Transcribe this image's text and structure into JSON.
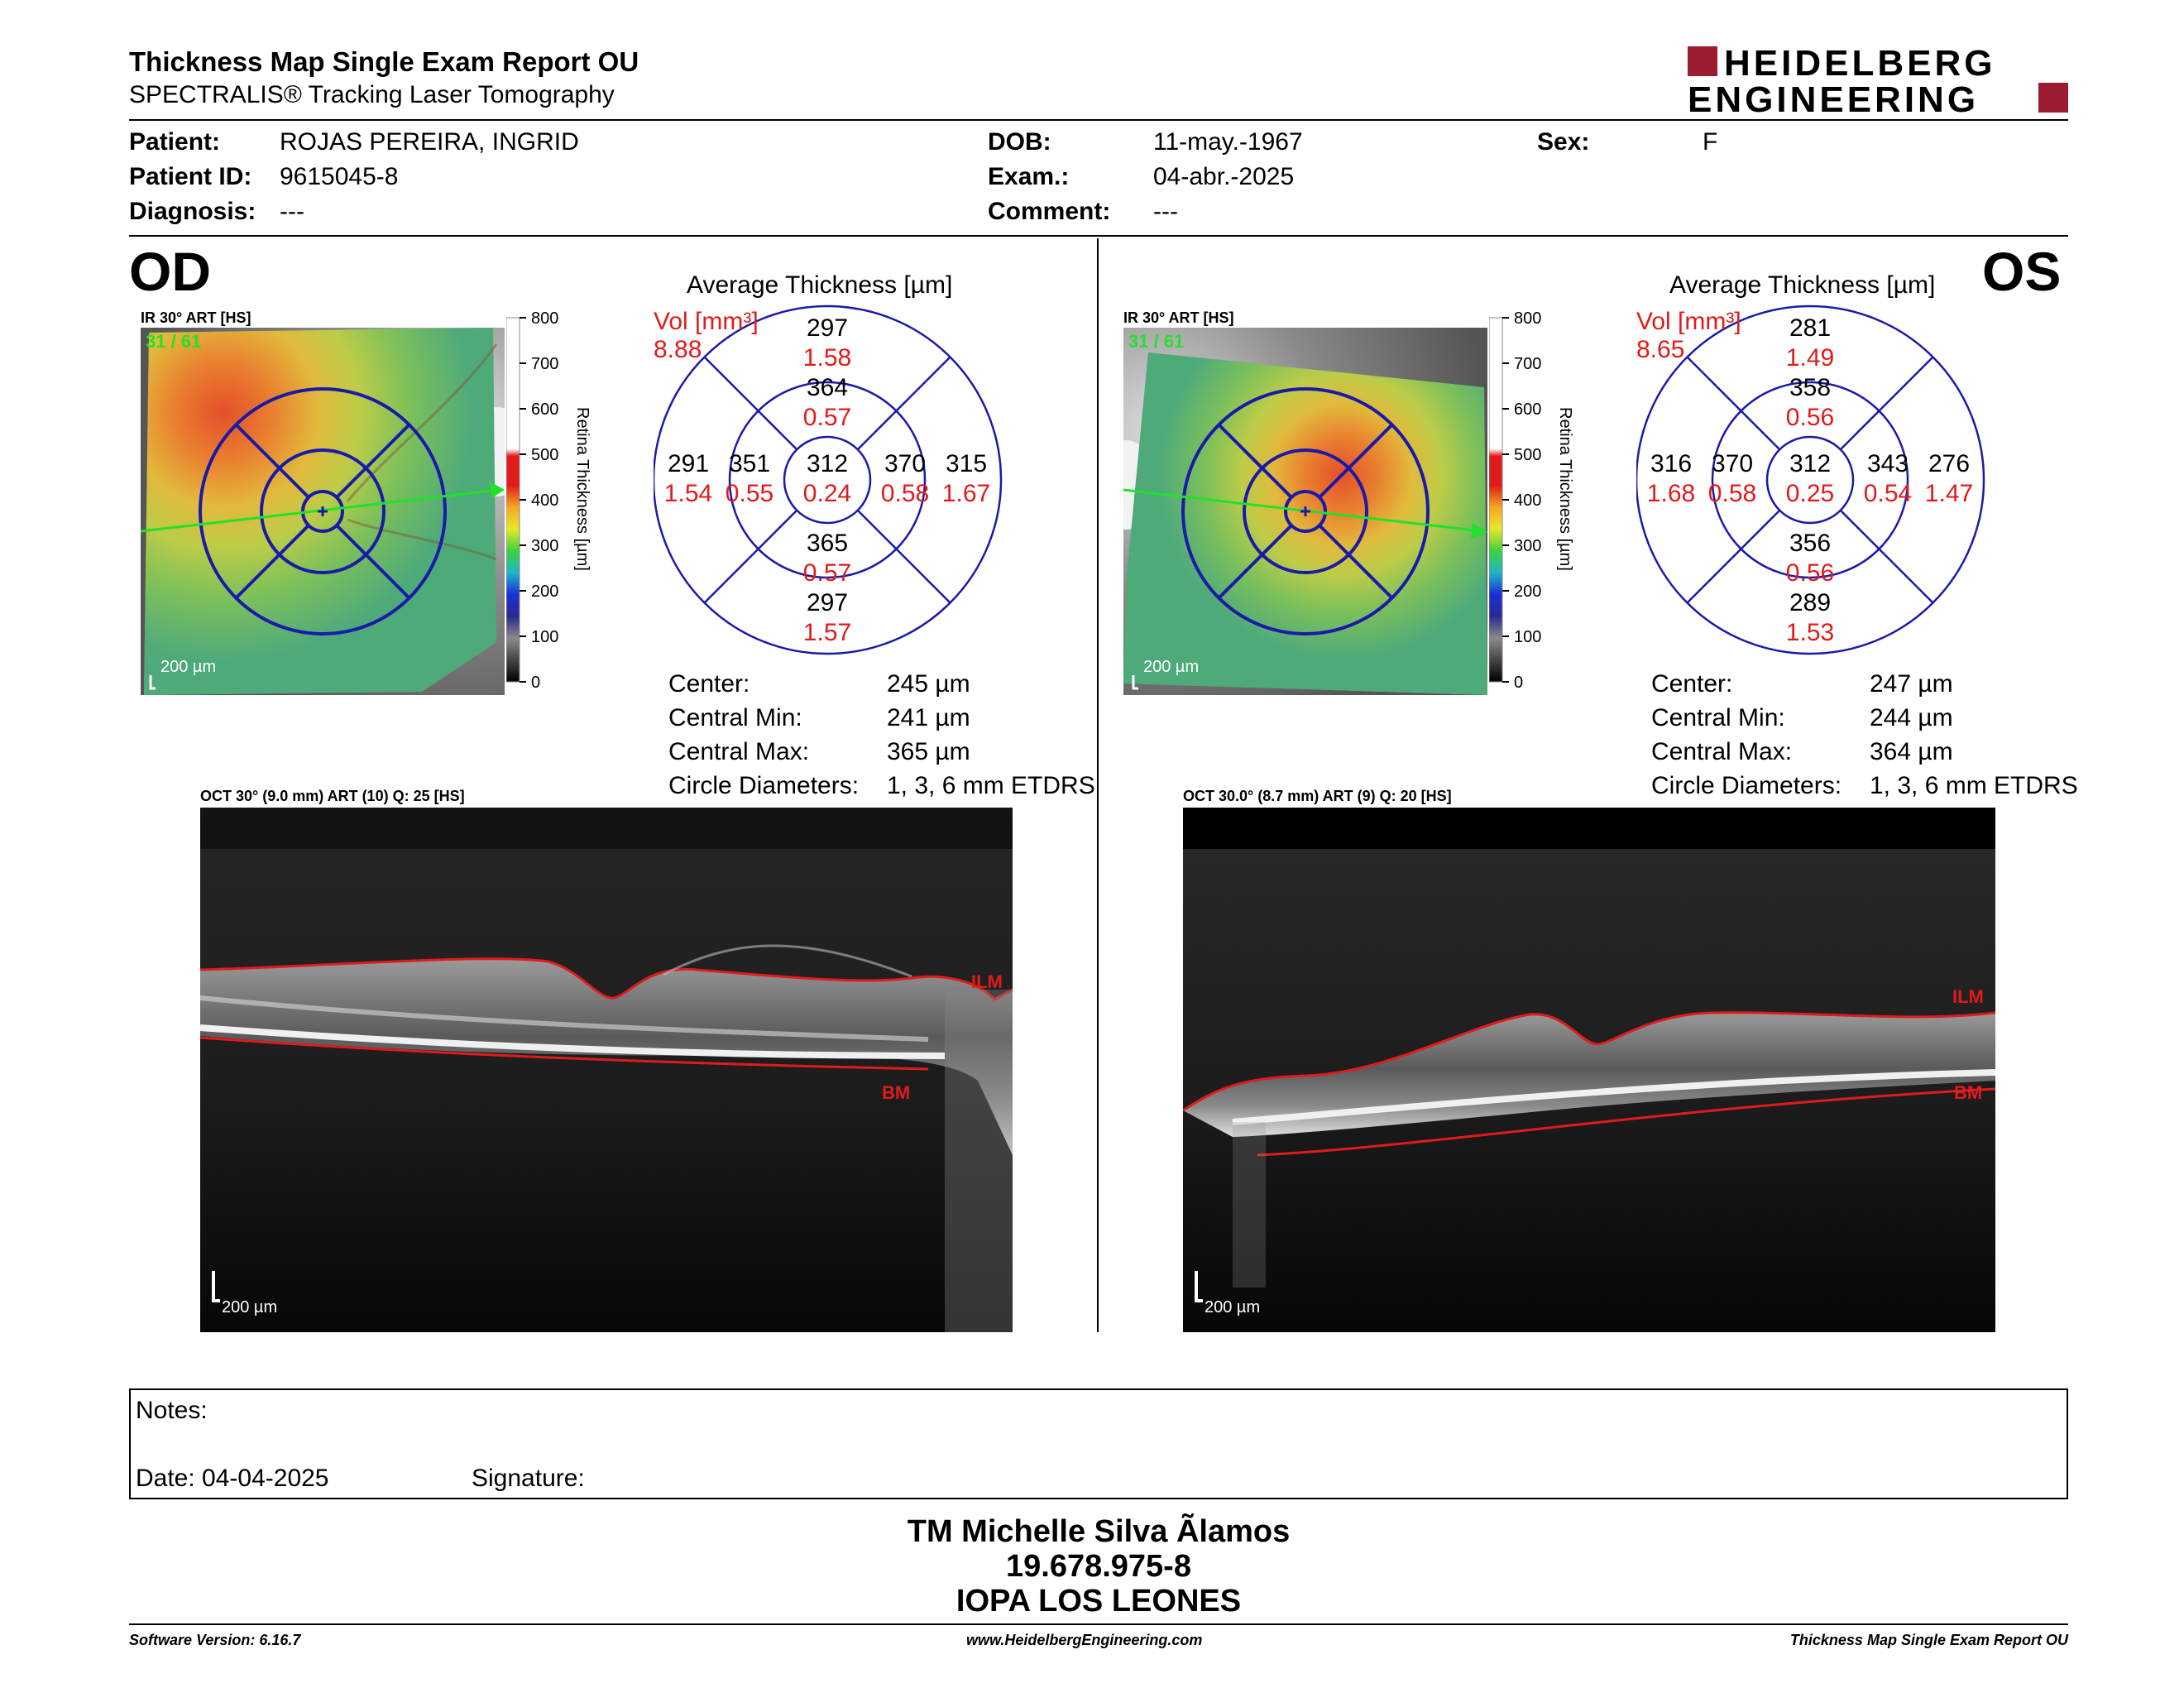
{
  "header": {
    "title": "Thickness Map Single Exam Report OU",
    "subtitle": "SPECTRALIS® Tracking Laser Tomography",
    "logo_line1": "HEIDELBERG",
    "logo_line2": "ENGINEERING",
    "brand_color": "#9b1b30"
  },
  "patient": {
    "patient_label": "Patient:",
    "patient_value": "ROJAS PEREIRA, INGRID",
    "id_label": "Patient ID:",
    "id_value": "9615045-8",
    "diag_label": "Diagnosis:",
    "diag_value": "---",
    "dob_label": "DOB:",
    "dob_value": "11-may.-1967",
    "exam_label": "Exam.:",
    "exam_value": "04-abr.-2025",
    "comment_label": "Comment:",
    "comment_value": "---",
    "sex_label": "Sex:",
    "sex_value": "F"
  },
  "od": {
    "eye": "OD",
    "ir_label": "IR 30° ART [HS]",
    "ir_counter": "31 / 61",
    "ir_scale": "200 µm",
    "colorbar_ticks": [
      "800",
      "700",
      "600",
      "500",
      "400",
      "300",
      "200",
      "100",
      "0"
    ],
    "colorbar_title": "Retina Thickness [µm]",
    "avg_title": "Average Thickness [µm]",
    "vol_label": "Vol [mm³]",
    "vol_value": "8.88",
    "sectors": {
      "outer_top": {
        "t": "297",
        "v": "1.58"
      },
      "inner_top": {
        "t": "364",
        "v": "0.57"
      },
      "outer_left": {
        "t": "291",
        "v": "1.54"
      },
      "inner_left": {
        "t": "351",
        "v": "0.55"
      },
      "center": {
        "t": "312",
        "v": "0.24"
      },
      "inner_right": {
        "t": "370",
        "v": "0.58"
      },
      "outer_right": {
        "t": "315",
        "v": "1.67"
      },
      "inner_bottom": {
        "t": "365",
        "v": "0.57"
      },
      "outer_bottom": {
        "t": "297",
        "v": "1.57"
      }
    },
    "stats": {
      "center_label": "Center:",
      "center_value": "245 µm",
      "min_label": "Central Min:",
      "min_value": "241 µm",
      "max_label": "Central Max:",
      "max_value": "365 µm",
      "diam_label": "Circle Diameters:",
      "diam_value": "1, 3, 6 mm ETDRS"
    },
    "oct_label": "OCT 30° (9.0 mm) ART (10) Q: 25 [HS]",
    "oct_scale": "200 µm",
    "ilm": "ILM",
    "bm": "BM"
  },
  "os": {
    "eye": "OS",
    "ir_label": "IR 30° ART [HS]",
    "ir_counter": "31 / 61",
    "ir_scale": "200 µm",
    "colorbar_ticks": [
      "800",
      "700",
      "600",
      "500",
      "400",
      "300",
      "200",
      "100",
      "0"
    ],
    "colorbar_title": "Retina Thickness [µm]",
    "avg_title": "Average Thickness [µm]",
    "vol_label": "Vol [mm³]",
    "vol_value": "8.65",
    "sectors": {
      "outer_top": {
        "t": "281",
        "v": "1.49"
      },
      "inner_top": {
        "t": "358",
        "v": "0.56"
      },
      "outer_left": {
        "t": "316",
        "v": "1.68"
      },
      "inner_left": {
        "t": "370",
        "v": "0.58"
      },
      "center": {
        "t": "312",
        "v": "0.25"
      },
      "inner_right": {
        "t": "343",
        "v": "0.54"
      },
      "outer_right": {
        "t": "276",
        "v": "1.47"
      },
      "inner_bottom": {
        "t": "356",
        "v": "0.56"
      },
      "outer_bottom": {
        "t": "289",
        "v": "1.53"
      }
    },
    "stats": {
      "center_label": "Center:",
      "center_value": "247 µm",
      "min_label": "Central Min:",
      "min_value": "244 µm",
      "max_label": "Central Max:",
      "max_value": "364 µm",
      "diam_label": "Circle Diameters:",
      "diam_value": "1, 3, 6 mm ETDRS"
    },
    "oct_label": "OCT 30.0° (8.7 mm) ART (9) Q: 20 [HS]",
    "oct_scale": "200 µm",
    "ilm": "ILM",
    "bm": "BM"
  },
  "notes": {
    "notes_label": "Notes:",
    "date_label": "Date: 04-04-2025",
    "signature_label": "Signature:"
  },
  "signer": {
    "name": "TM Michelle Silva Ãlamos",
    "id": "19.678.975-8",
    "org": "IOPA LOS LEONES"
  },
  "footer": {
    "software": "Software Version: 6.16.7",
    "website": "www.HeidelbergEngineering.com",
    "report": "Thickness Map Single Exam Report OU"
  }
}
